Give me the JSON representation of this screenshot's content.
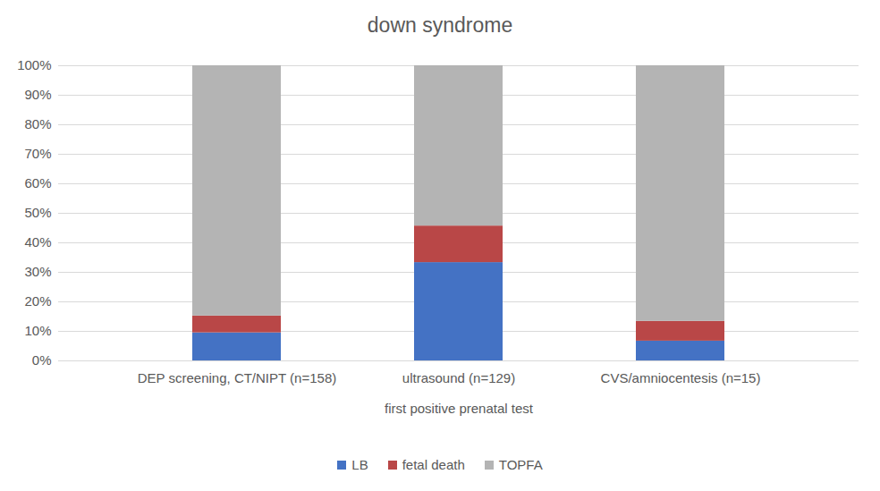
{
  "chart_data": {
    "type": "bar",
    "stacked": true,
    "title": "down syndrome",
    "x_label": "first positive prenatal test",
    "categories": [
      "DEP screening, CT/NIPT (n=158)",
      "ultrasound (n=129)",
      "CVS/amniocentesis (n=15)"
    ],
    "series": [
      {
        "name": "LB",
        "color": "#4472c4",
        "values": [
          9.5,
          33.3,
          6.7
        ]
      },
      {
        "name": "fetal death",
        "color": "#b94747",
        "values": [
          5.7,
          12.4,
          6.7
        ]
      },
      {
        "name": "TOPFA",
        "color": "#b4b4b4",
        "values": [
          84.8,
          54.3,
          86.6
        ]
      }
    ],
    "ylim": [
      0,
      100
    ],
    "yticks": [
      {
        "value": 0,
        "label": "0%"
      },
      {
        "value": 10,
        "label": "10%"
      },
      {
        "value": 20,
        "label": "20%"
      },
      {
        "value": 30,
        "label": "30%"
      },
      {
        "value": 40,
        "label": "40%"
      },
      {
        "value": 50,
        "label": "50%"
      },
      {
        "value": 60,
        "label": "60%"
      },
      {
        "value": 70,
        "label": "70%"
      },
      {
        "value": 80,
        "label": "80%"
      },
      {
        "value": 90,
        "label": "90%"
      },
      {
        "value": 100,
        "label": "100%"
      }
    ],
    "grid": true,
    "legend": "bottom"
  }
}
